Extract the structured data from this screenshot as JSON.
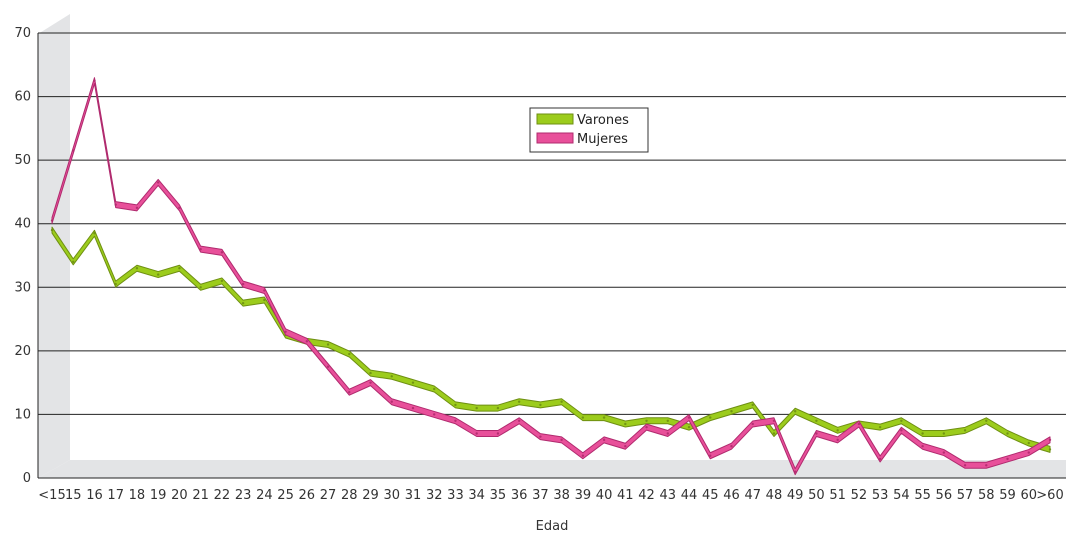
{
  "chart_data": {
    "type": "line",
    "title": "",
    "xlabel": "Edad",
    "ylabel": "",
    "ylim": [
      0,
      70
    ],
    "yticks": [
      0,
      10,
      20,
      30,
      40,
      50,
      60,
      70
    ],
    "grid": true,
    "legend_position": "center",
    "categories": [
      "<15",
      "15",
      "16",
      "17",
      "18",
      "19",
      "20",
      "21",
      "22",
      "23",
      "24",
      "25",
      "26",
      "27",
      "28",
      "29",
      "30",
      "31",
      "32",
      "33",
      "34",
      "35",
      "36",
      "37",
      "38",
      "39",
      "40",
      "41",
      "42",
      "43",
      "44",
      "45",
      "46",
      "47",
      "48",
      "49",
      "50",
      "51",
      "52",
      "53",
      "54",
      "55",
      "56",
      "57",
      "58",
      "59",
      "60",
      ">60"
    ],
    "series": [
      {
        "name": "Varones",
        "color": "#9ccc1c",
        "values": [
          39,
          34,
          38.5,
          30.5,
          33,
          32,
          33,
          30,
          31,
          27.5,
          28,
          22.5,
          21.5,
          21,
          19.5,
          16.5,
          16,
          15,
          14,
          11.5,
          11,
          11,
          12,
          11.5,
          12,
          9.5,
          9.5,
          8.5,
          9,
          9,
          8,
          9.5,
          10.5,
          11.5,
          7,
          10.5,
          9,
          7.5,
          8.5,
          8,
          9,
          7,
          7,
          7.5,
          9,
          7,
          5.5,
          4.5
        ]
      },
      {
        "name": "Mujeres",
        "color": "#e8509a",
        "values": [
          40.5,
          51.5,
          62.5,
          43,
          42.5,
          46.5,
          42.5,
          36,
          35.5,
          30.5,
          29.5,
          23,
          21.5,
          17.5,
          13.5,
          15,
          12,
          11,
          10,
          9,
          7,
          7,
          9,
          6.5,
          6,
          3.5,
          6,
          5,
          8,
          7,
          9.5,
          3.5,
          5,
          8.5,
          9,
          1,
          7,
          6,
          8.5,
          3,
          7.5,
          5,
          4,
          2,
          2,
          3,
          4,
          6
        ]
      }
    ]
  }
}
